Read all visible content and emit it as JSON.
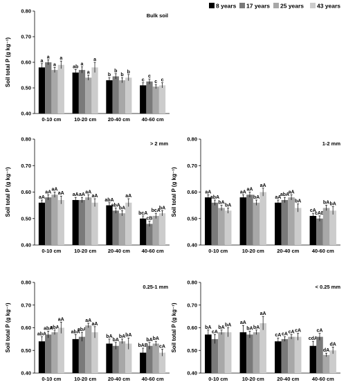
{
  "legend": [
    {
      "label": "8 years",
      "color": "#000000"
    },
    {
      "label": "17 years",
      "color": "#7a7a7a"
    },
    {
      "label": "25 years",
      "color": "#a8a8a8"
    },
    {
      "label": "43 years",
      "color": "#cccccc"
    }
  ],
  "chart_data": [
    {
      "type": "bar",
      "title": "Bulk soil",
      "ylabel": "Soil total P (g kg⁻¹)",
      "ylim": [
        0.4,
        0.8
      ],
      "yticks": [
        "0.40",
        "0.50",
        "0.60",
        "0.70",
        "0.80"
      ],
      "categories": [
        "0-10 cm",
        "10-20 cm",
        "20-40 cm",
        "40-60 cm"
      ],
      "series": [
        {
          "name": "8 years",
          "values": [
            0.58,
            0.56,
            0.53,
            0.51
          ],
          "errors": [
            0.015,
            0.012,
            0.01,
            0.01
          ],
          "labels": [
            "a",
            "ab",
            "b",
            "c"
          ]
        },
        {
          "name": "17 years",
          "values": [
            0.6,
            0.57,
            0.545,
            0.525
          ],
          "errors": [
            0.01,
            0.012,
            0.01,
            0.01
          ],
          "labels": [
            "a",
            "a",
            "b",
            "c"
          ]
        },
        {
          "name": "25 years",
          "values": [
            0.57,
            0.54,
            0.53,
            0.505
          ],
          "errors": [
            0.01,
            0.01,
            0.01,
            0.008
          ],
          "labels": [
            "a",
            "a",
            "b",
            "c"
          ]
        },
        {
          "name": "43 years",
          "values": [
            0.59,
            0.58,
            0.54,
            0.51
          ],
          "errors": [
            0.015,
            0.02,
            0.012,
            0.01
          ],
          "labels": [
            "a",
            "a",
            "b",
            "c"
          ]
        }
      ]
    },
    {
      "type": "bar",
      "title": "> 2 mm",
      "ylabel": "Soil total P (g kg⁻¹)",
      "ylim": [
        0.4,
        0.8
      ],
      "yticks": [
        "0.40",
        "0.50",
        "0.60",
        "0.70",
        "0.80"
      ],
      "categories": [
        "0-10 cm",
        "10-20 cm",
        "20-40 cm",
        "40-60 cm"
      ],
      "series": [
        {
          "name": "8 years",
          "values": [
            0.56,
            0.57,
            0.55,
            0.5
          ],
          "errors": [
            0.01,
            0.01,
            0.01,
            0.01
          ],
          "labels": [
            "aA",
            "aA",
            "abA",
            "bcA"
          ]
        },
        {
          "name": "17 years",
          "values": [
            0.58,
            0.57,
            0.53,
            0.48
          ],
          "errors": [
            0.01,
            0.01,
            0.01,
            0.01
          ],
          "labels": [
            "aA",
            "aA",
            "abA",
            "cB"
          ]
        },
        {
          "name": "25 years",
          "values": [
            0.59,
            0.58,
            0.52,
            0.51
          ],
          "errors": [
            0.01,
            0.01,
            0.01,
            0.01
          ],
          "labels": [
            "aA",
            "aA",
            "bA",
            "bcA"
          ]
        },
        {
          "name": "43 years",
          "values": [
            0.57,
            0.56,
            0.56,
            0.52
          ],
          "errors": [
            0.015,
            0.015,
            0.015,
            0.01
          ],
          "labels": [
            "aA",
            "aA",
            "aA",
            "bA"
          ]
        }
      ]
    },
    {
      "type": "bar",
      "title": "1-2 mm",
      "ylabel": "Soil total P (g kg⁻¹)",
      "ylim": [
        0.4,
        0.8
      ],
      "yticks": [
        "0.40",
        "0.50",
        "0.60",
        "0.70",
        "0.80"
      ],
      "categories": [
        "0-10 cm",
        "10-20 cm",
        "20-40 cm",
        "40-60 cm"
      ],
      "series": [
        {
          "name": "8 years",
          "values": [
            0.58,
            0.58,
            0.56,
            0.51
          ],
          "errors": [
            0.01,
            0.01,
            0.01,
            0.01
          ],
          "labels": [
            "aA",
            "aA",
            "aA",
            "cA"
          ]
        },
        {
          "name": "17 years",
          "values": [
            0.56,
            0.59,
            0.57,
            0.5
          ],
          "errors": [
            0.01,
            0.01,
            0.01,
            0.01
          ],
          "labels": [
            "abA",
            "aA",
            "abA",
            "cAB"
          ]
        },
        {
          "name": "25 years",
          "values": [
            0.54,
            0.56,
            0.58,
            0.54
          ],
          "errors": [
            0.01,
            0.01,
            0.01,
            0.01
          ],
          "labels": [
            "bA",
            "bA",
            "aA",
            "bA"
          ]
        },
        {
          "name": "43 years",
          "values": [
            0.53,
            0.6,
            0.54,
            0.53
          ],
          "errors": [
            0.01,
            0.015,
            0.015,
            0.015
          ],
          "labels": [
            "bA",
            "aA",
            "bA",
            "bA"
          ]
        }
      ]
    },
    {
      "type": "bar",
      "title": "0.25-1 mm",
      "ylabel": "Soil total P (g kg⁻¹)",
      "ylim": [
        0.4,
        0.8
      ],
      "yticks": [
        "0.40",
        "0.50",
        "0.60",
        "0.70",
        "0.80"
      ],
      "categories": [
        "0-10 cm",
        "10-20 cm",
        "20-40 cm",
        "40-60 cm"
      ],
      "series": [
        {
          "name": "8 years",
          "values": [
            0.54,
            0.55,
            0.53,
            0.49
          ],
          "errors": [
            0.02,
            0.02,
            0.02,
            0.02
          ],
          "labels": [
            "abA",
            "abA",
            "bA",
            "bAB"
          ]
        },
        {
          "name": "17 years",
          "values": [
            0.57,
            0.56,
            0.52,
            0.52
          ],
          "errors": [
            0.015,
            0.02,
            0.015,
            0.015
          ],
          "labels": [
            "abA",
            "abA",
            "bA",
            "bA"
          ]
        },
        {
          "name": "25 years",
          "values": [
            0.58,
            0.61,
            0.54,
            0.53
          ],
          "errors": [
            0.01,
            0.01,
            0.01,
            0.01
          ],
          "labels": [
            "abA",
            "aA",
            "bA",
            "bA"
          ]
        },
        {
          "name": "43 years",
          "values": [
            0.6,
            0.58,
            0.53,
            0.49
          ],
          "errors": [
            0.025,
            0.025,
            0.025,
            0.015
          ],
          "labels": [
            "aA",
            "aA",
            "bA",
            "cA"
          ]
        }
      ]
    },
    {
      "type": "bar",
      "title": "< 0.25 mm",
      "ylabel": "Soil total P (g kg⁻¹)",
      "ylim": [
        0.4,
        0.8
      ],
      "yticks": [
        "0.40",
        "0.50",
        "0.60",
        "0.70",
        "0.80"
      ],
      "categories": [
        "0-10 cm",
        "10-20 cm",
        "20-40 cm",
        "40-60 cm"
      ],
      "series": [
        {
          "name": "8 years",
          "values": [
            0.57,
            0.58,
            0.54,
            0.52
          ],
          "errors": [
            0.02,
            0.03,
            0.015,
            0.02
          ],
          "labels": [
            "bA",
            "aA",
            "cA",
            "cdA"
          ]
        },
        {
          "name": "17 years",
          "values": [
            0.55,
            0.57,
            0.55,
            0.56
          ],
          "errors": [
            0.02,
            0.015,
            0.01,
            0.015
          ],
          "labels": [
            "cA",
            "bA",
            "cA",
            "cA"
          ]
        },
        {
          "name": "25 years",
          "values": [
            0.58,
            0.58,
            0.56,
            0.48
          ],
          "errors": [
            0.01,
            0.01,
            0.01,
            0.008
          ],
          "labels": [
            "bA",
            "bA",
            "cA",
            "dA"
          ]
        },
        {
          "name": "43 years",
          "values": [
            0.58,
            0.62,
            0.56,
            0.5
          ],
          "errors": [
            0.02,
            0.03,
            0.015,
            0.015
          ],
          "labels": [
            "bA",
            "aA",
            "cA",
            "dA"
          ]
        }
      ]
    }
  ]
}
